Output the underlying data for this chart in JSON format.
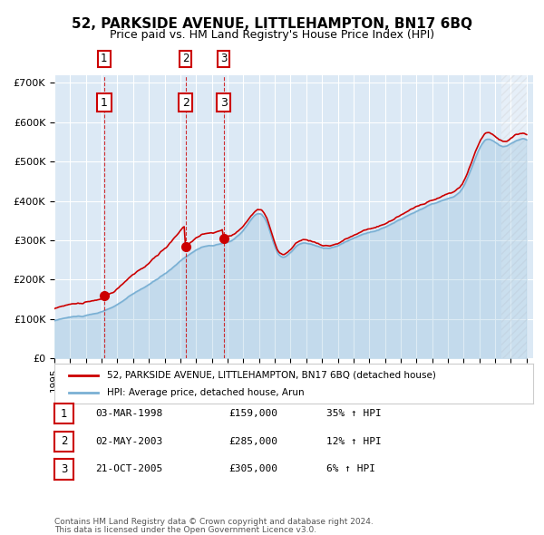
{
  "title": "52, PARKSIDE AVENUE, LITTLEHAMPTON, BN17 6BQ",
  "subtitle": "Price paid vs. HM Land Registry's House Price Index (HPI)",
  "ylabel": "",
  "bg_color": "#dce9f5",
  "plot_bg": "#dce9f5",
  "grid_color": "#ffffff",
  "hpi_color": "#7ab0d4",
  "price_color": "#cc0000",
  "purchases": [
    {
      "date": "1998-03-03",
      "price": 159000,
      "label": "1",
      "hpi_pct": 35
    },
    {
      "date": "2003-05-02",
      "price": 285000,
      "label": "2",
      "hpi_pct": 12
    },
    {
      "date": "2005-10-21",
      "price": 305000,
      "label": "3",
      "hpi_pct": 6
    }
  ],
  "legend_label_price": "52, PARKSIDE AVENUE, LITTLEHAMPTON, BN17 6BQ (detached house)",
  "legend_label_hpi": "HPI: Average price, detached house, Arun",
  "footer1": "Contains HM Land Registry data © Crown copyright and database right 2024.",
  "footer2": "This data is licensed under the Open Government Licence v3.0.",
  "table_rows": [
    [
      "1",
      "03-MAR-1998",
      "£159,000",
      "35% ↑ HPI"
    ],
    [
      "2",
      "02-MAY-2003",
      "£285,000",
      "12% ↑ HPI"
    ],
    [
      "3",
      "21-OCT-2005",
      "£305,000",
      "6% ↑ HPI"
    ]
  ]
}
